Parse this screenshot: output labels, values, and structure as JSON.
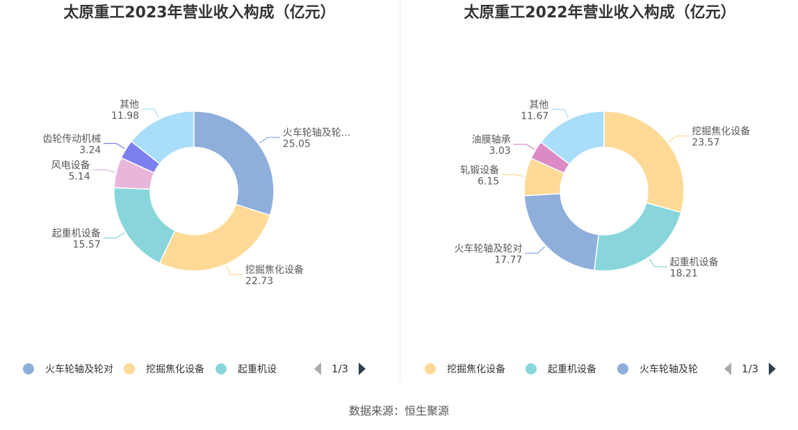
{
  "source": "数据来源：恒生聚源",
  "chart_data": [
    {
      "type": "pie",
      "title": "太原重工2023年营业收入构成（亿元）",
      "center": [
        279,
        275
      ],
      "slices": [
        {
          "name": "火车轮轴及轮对",
          "label": "火车轮轴及轮...",
          "value": 25.05,
          "color": "#8eaedc",
          "side": "right"
        },
        {
          "name": "挖掘焦化设备",
          "label": "挖掘焦化设备",
          "value": 22.73,
          "color": "#ffd996",
          "side": "right"
        },
        {
          "name": "起重机设备",
          "label": "起重机设备",
          "value": 15.57,
          "color": "#88d6dc",
          "side": "left"
        },
        {
          "name": "风电设备",
          "label": "风电设备",
          "value": 5.14,
          "color": "#e8b6da",
          "side": "left"
        },
        {
          "name": "齿轮传动机械",
          "label": "齿轮传动机械",
          "value": 3.24,
          "color": "#7b7ff0",
          "side": "left"
        },
        {
          "name": "其他",
          "label": "其他",
          "value": 11.98,
          "color": "#a9defa",
          "side": "left"
        }
      ],
      "legend": {
        "items": [
          {
            "name": "火车轮轴及轮对",
            "color": "#8eaedc"
          },
          {
            "name": "挖掘焦化设备",
            "color": "#ffd996"
          },
          {
            "name": "起重机设",
            "color": "#88d6dc"
          }
        ],
        "page": "1/3"
      }
    },
    {
      "type": "pie",
      "title": "太原重工2022年营业收入构成（亿元）",
      "center": [
        293,
        275
      ],
      "slices": [
        {
          "name": "挖掘焦化设备",
          "label": "挖掘焦化设备",
          "value": 23.57,
          "color": "#ffd996",
          "side": "right"
        },
        {
          "name": "起重机设备",
          "label": "起重机设备",
          "value": 18.21,
          "color": "#88d6dc",
          "side": "right"
        },
        {
          "name": "火车轮轴及轮对",
          "label": "火车轮轴及轮对",
          "value": 17.77,
          "color": "#8eaedc",
          "side": "left"
        },
        {
          "name": "轧锻设备",
          "label": "轧锻设备",
          "value": 6.15,
          "color": "#ffd996",
          "side": "left"
        },
        {
          "name": "油膜轴承",
          "label": "油膜轴承",
          "value": 3.03,
          "color": "#dc8ac6",
          "side": "left"
        },
        {
          "name": "其他",
          "label": "其他",
          "value": 11.67,
          "color": "#a9defa",
          "side": "left"
        }
      ],
      "legend": {
        "items": [
          {
            "name": "挖掘焦化设备",
            "color": "#ffd996"
          },
          {
            "name": "起重机设备",
            "color": "#88d6dc"
          },
          {
            "name": "火车轮轴及轮",
            "color": "#8eaedc"
          }
        ],
        "page": "1/3"
      }
    }
  ]
}
